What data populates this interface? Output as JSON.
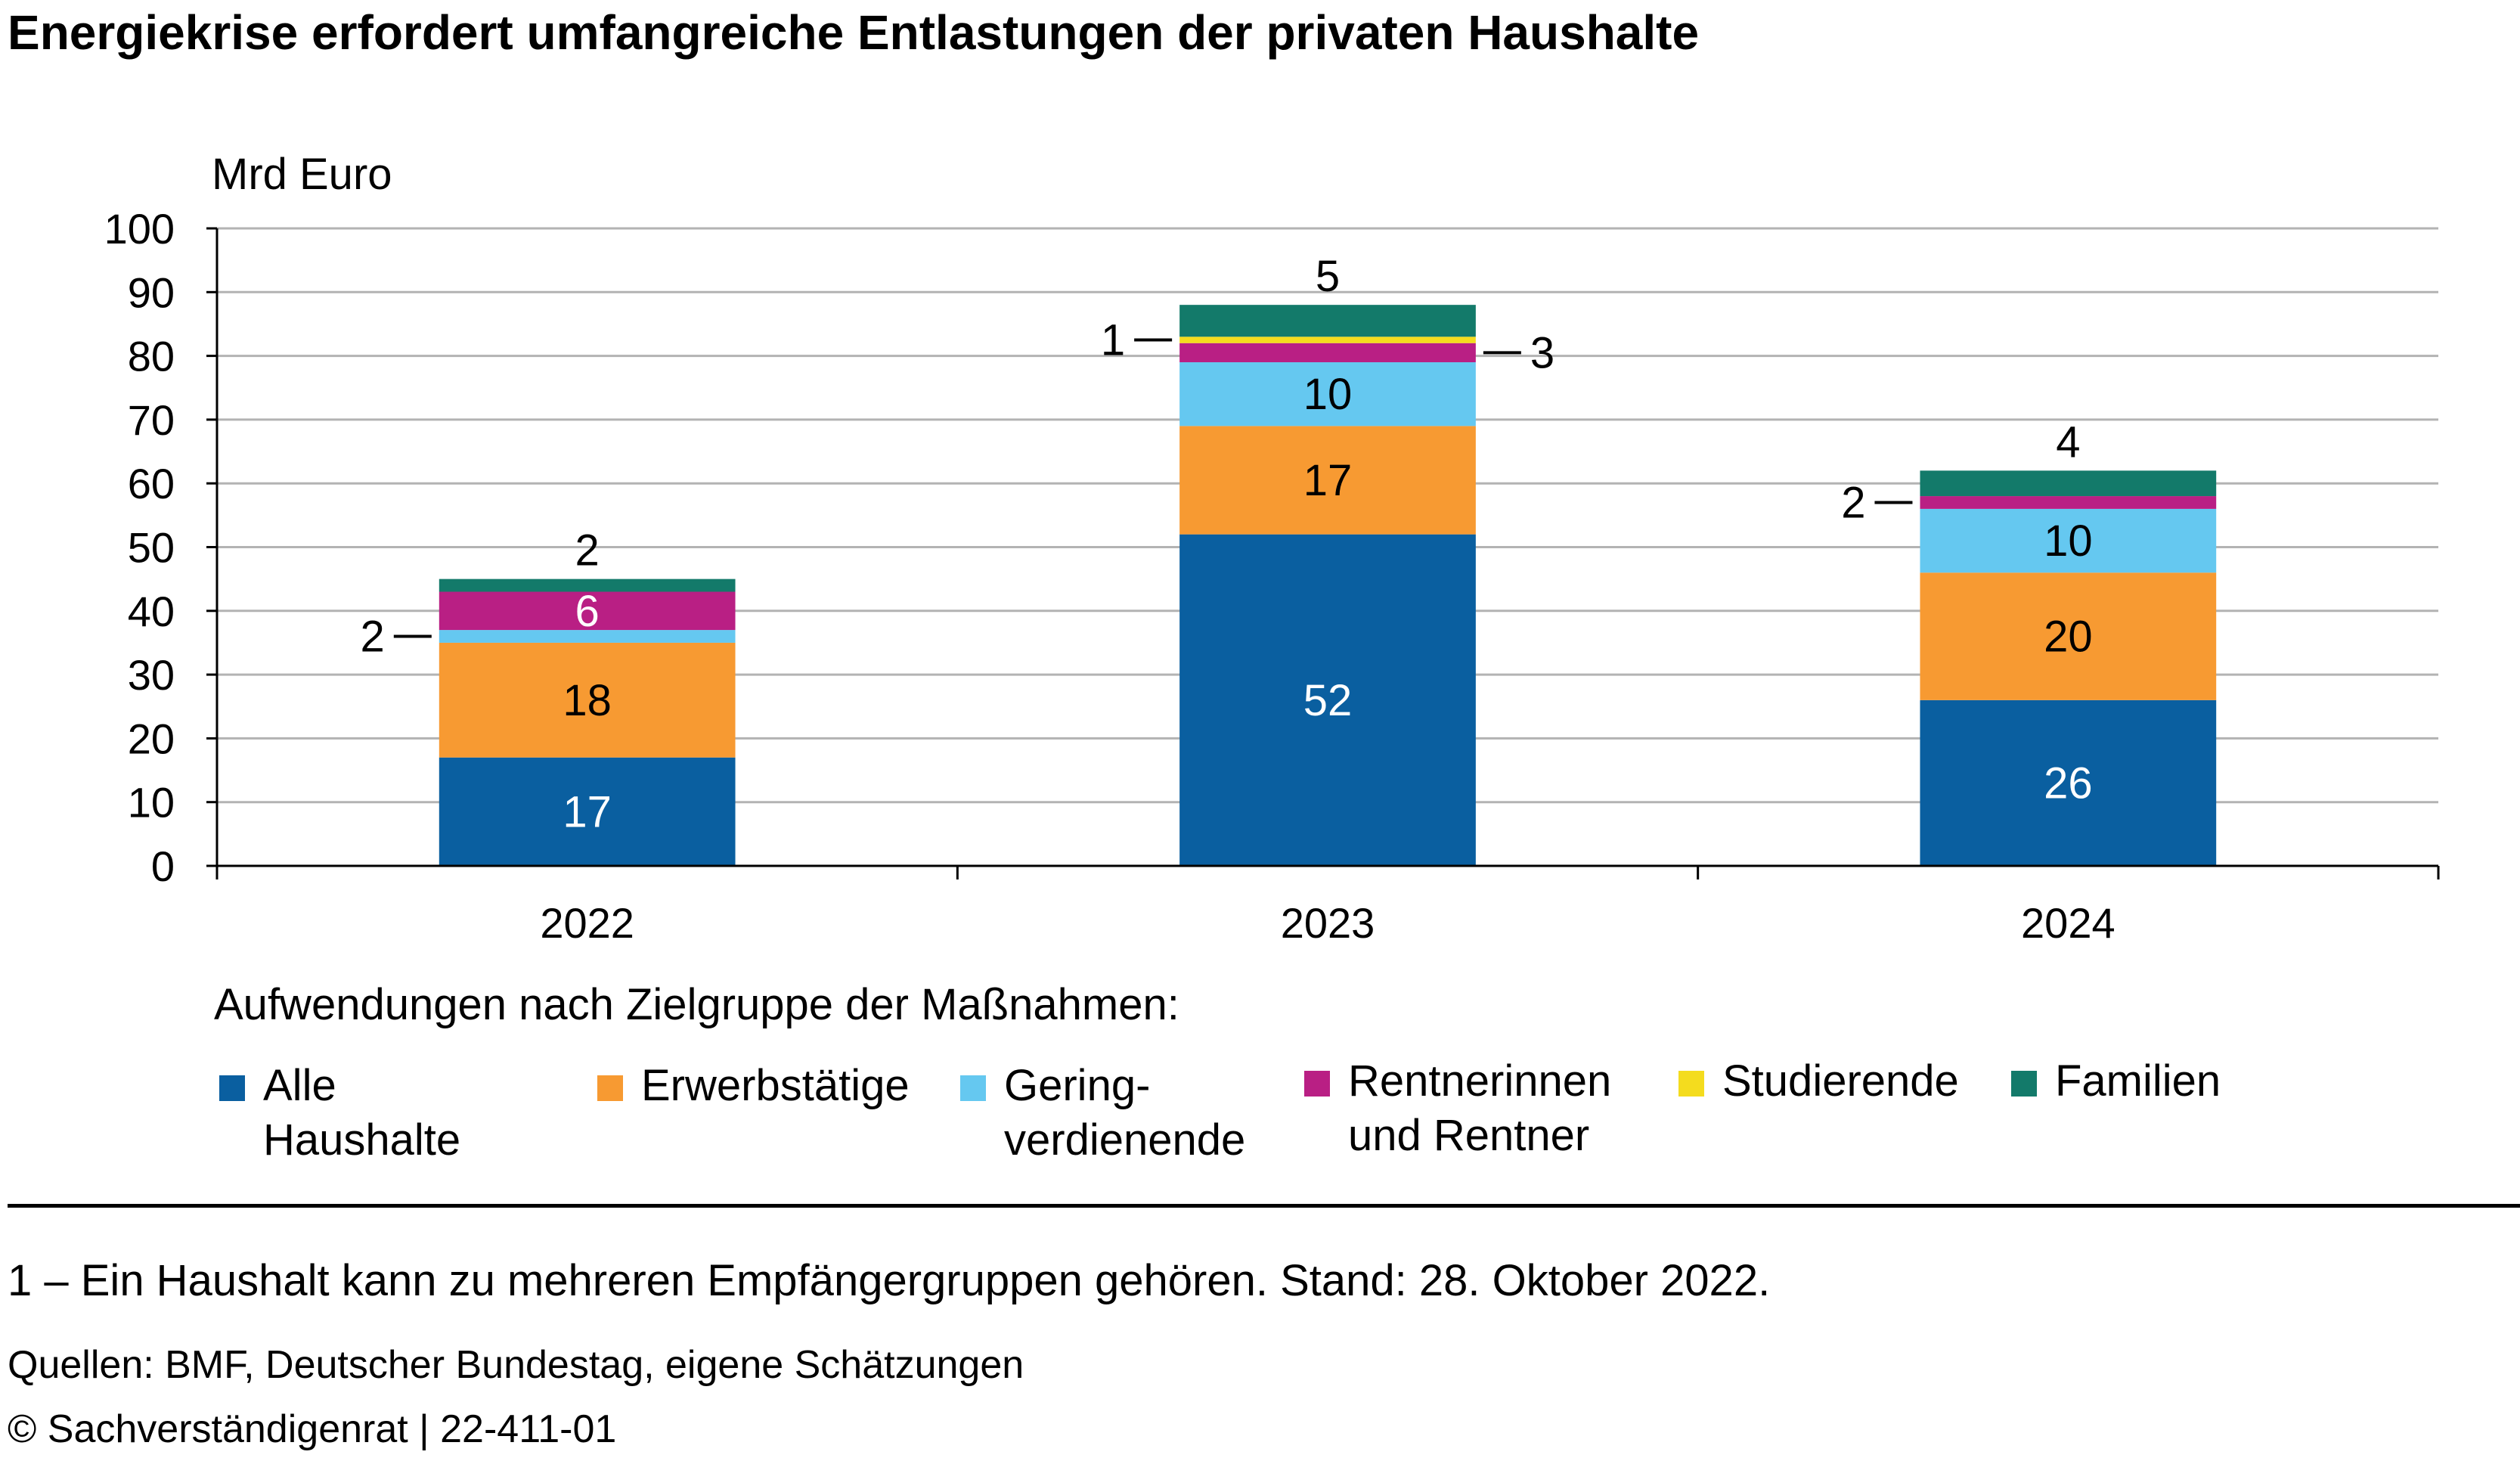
{
  "title": "Energiekrise erfordert umfangreiche Entlastungen der privaten Haushalte",
  "chart_data": {
    "type": "bar",
    "stacked": true,
    "unit_label": "Mrd Euro",
    "categories": [
      "2022",
      "2023",
      "2024"
    ],
    "ylim": [
      0,
      100
    ],
    "yticks": [
      0,
      10,
      20,
      30,
      40,
      50,
      60,
      70,
      80,
      90,
      100
    ],
    "grid": true,
    "series": [
      {
        "name": "Alle Haushalte",
        "color": "#0a5fa0",
        "values": [
          17,
          52,
          26
        ]
      },
      {
        "name": "Erwerbstätige",
        "color": "#f79a32",
        "values": [
          18,
          17,
          20
        ]
      },
      {
        "name": "Gering-\nverdienende",
        "color": "#65c8f0",
        "values": [
          2,
          10,
          10
        ]
      },
      {
        "name": "Rentnerinnen\nund Rentner",
        "color": "#b91f84",
        "values": [
          6,
          3,
          2
        ]
      },
      {
        "name": "Studierende",
        "color": "#f4dc1e",
        "values": [
          0,
          1,
          0
        ]
      },
      {
        "name": "Familien",
        "color": "#137a6a",
        "values": [
          2,
          5,
          4
        ]
      }
    ]
  },
  "legend_title": "Aufwendungen nach Zielgruppe der Maßnahmen:",
  "footnote": "1 – Ein Haushalt kann zu mehreren Empfängergruppen gehören. Stand: 28. Oktober 2022.",
  "sources": "Quellen: BMF, Deutscher Bundestag, eigene Schätzungen",
  "copyright": "© Sachverständigenrat | 22-411-01"
}
